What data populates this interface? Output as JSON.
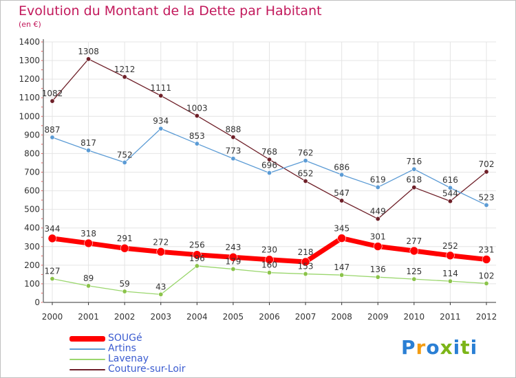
{
  "title": "Evolution du Montant de la Dette par Habitant",
  "subtitle": "(en €)",
  "brand": {
    "letters": [
      "P",
      "r",
      "o",
      "x",
      "i",
      "t",
      "i"
    ],
    "colors": [
      "#2a7fd4",
      "#f39c12",
      "#2a7fd4",
      "#7cb518",
      "#2a7fd4",
      "#7cb518",
      "#2a7fd4"
    ]
  },
  "chart_data": {
    "type": "line",
    "title": "Evolution du Montant de la Dette par Habitant",
    "subtitle": "(en €)",
    "x": [
      "2000",
      "2001",
      "2002",
      "2003",
      "2004",
      "2005",
      "2006",
      "2007",
      "2008",
      "2009",
      "2010",
      "2011",
      "2012"
    ],
    "ylim": [
      0,
      1400
    ],
    "yticks": [
      0,
      100,
      200,
      300,
      400,
      500,
      600,
      700,
      800,
      900,
      1000,
      1100,
      1200,
      1300,
      1400
    ],
    "grid": true,
    "legend_position": "bottom-left",
    "series": [
      {
        "name": "Couture-sur-Loir",
        "color": "#6e1f28",
        "marker": "#6e1f28",
        "width": 1.3,
        "markerSize": 3.2,
        "values": [
          1082,
          1308,
          1212,
          1111,
          1003,
          888,
          768,
          652,
          547,
          449,
          618,
          544,
          702
        ]
      },
      {
        "name": "Artins",
        "color": "#5b9bd5",
        "marker": "#5b9bd5",
        "width": 1.3,
        "markerSize": 3.2,
        "values": [
          887,
          817,
          752,
          934,
          853,
          773,
          696,
          762,
          686,
          619,
          716,
          616,
          523
        ]
      },
      {
        "name": "Lavenay",
        "color": "#9ad66d",
        "marker": "#8bc34a",
        "width": 1.3,
        "markerSize": 3.2,
        "values": [
          127,
          89,
          59,
          43,
          196,
          179,
          160,
          153,
          147,
          136,
          125,
          114,
          102
        ]
      },
      {
        "name": "SOUGé",
        "color": "#ff0000",
        "marker": "#ff0000",
        "width": 7,
        "markerSize": 6,
        "values": [
          344,
          318,
          291,
          272,
          256,
          243,
          230,
          218,
          345,
          301,
          277,
          252,
          231
        ]
      }
    ],
    "legend_order": [
      "SOUGé",
      "Artins",
      "Lavenay",
      "Couture-sur-Loir"
    ]
  }
}
